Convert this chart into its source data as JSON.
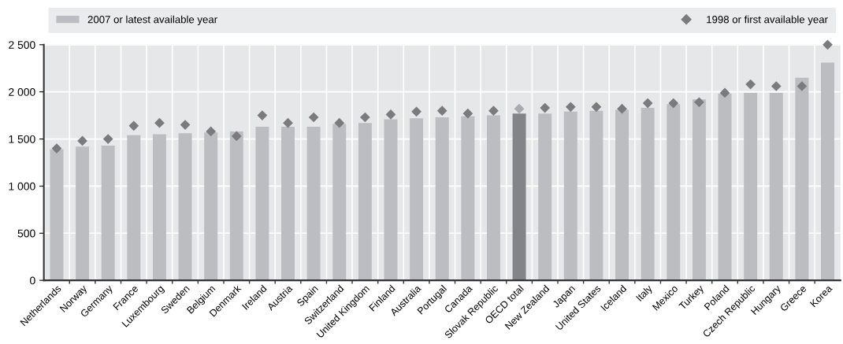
{
  "chart_data": {
    "type": "bar",
    "categories": [
      "Netherlands",
      "Norway",
      "Germany",
      "France",
      "Luxembourg",
      "Sweden",
      "Belgium",
      "Denmark",
      "Ireland",
      "Austria",
      "Spain",
      "Switzerland",
      "United Kingdom",
      "Finland",
      "Australia",
      "Portugal",
      "Canada",
      "Slovak Republic",
      "OECD total",
      "New Zealand",
      "Japan",
      "United States",
      "Iceland",
      "Italy",
      "Mexico",
      "Turkey",
      "Poland",
      "Czech Republic",
      "Hungary",
      "Greece",
      "Korea"
    ],
    "series": [
      {
        "name": "2007 or latest available year",
        "color": "#bcbdc1",
        "colors": [
          "#bcbdc1",
          "#bcbdc1",
          "#bcbdc1",
          "#bcbdc1",
          "#bcbdc1",
          "#bcbdc1",
          "#bcbdc1",
          "#bcbdc1",
          "#bcbdc1",
          "#bcbdc1",
          "#bcbdc1",
          "#bcbdc1",
          "#bcbdc1",
          "#bcbdc1",
          "#bcbdc1",
          "#bcbdc1",
          "#bcbdc1",
          "#bcbdc1",
          "#838487",
          "#bcbdc1",
          "#bcbdc1",
          "#bcbdc1",
          "#bcbdc1",
          "#bcbdc1",
          "#bcbdc1",
          "#bcbdc1",
          "#bcbdc1",
          "#bcbdc1",
          "#bcbdc1",
          "#bcbdc1",
          "#bcbdc1"
        ],
        "values": [
          1390,
          1420,
          1430,
          1540,
          1550,
          1560,
          1570,
          1580,
          1630,
          1630,
          1630,
          1660,
          1670,
          1710,
          1720,
          1730,
          1740,
          1750,
          1770,
          1770,
          1790,
          1800,
          1810,
          1830,
          1870,
          1920,
          1980,
          1990,
          1990,
          2150,
          2310
        ]
      },
      {
        "name": "1998 or first available year",
        "type": "scatter",
        "marker": "diamond",
        "color": "#7b7b7d",
        "colors": [
          "#7b7b7d",
          "#7b7b7d",
          "#7b7b7d",
          "#7b7b7d",
          "#7b7b7d",
          "#7b7b7d",
          "#7b7b7d",
          "#7b7b7d",
          "#7b7b7d",
          "#7b7b7d",
          "#7b7b7d",
          "#7b7b7d",
          "#7b7b7d",
          "#7b7b7d",
          "#7b7b7d",
          "#7b7b7d",
          "#7b7b7d",
          "#7b7b7d",
          "#a9aaad",
          "#7b7b7d",
          "#7b7b7d",
          "#7b7b7d",
          "#7b7b7d",
          "#7b7b7d",
          "#7b7b7d",
          "#7b7b7d",
          "#7b7b7d",
          "#7b7b7d",
          "#7b7b7d",
          "#7b7b7d",
          "#7b7b7d"
        ],
        "values": [
          1400,
          1480,
          1500,
          1640,
          1670,
          1650,
          1580,
          1530,
          1750,
          1670,
          1730,
          1670,
          1730,
          1760,
          1790,
          1800,
          1770,
          1800,
          1820,
          1830,
          1840,
          1840,
          1820,
          1880,
          1880,
          1890,
          1990,
          2080,
          2060,
          2060,
          2500
        ]
      }
    ],
    "ylim": [
      0,
      2500
    ],
    "yticks": [
      0,
      500,
      {
        "value": 1000,
        "label": "1 000"
      },
      {
        "value": 1500,
        "label": "1 500"
      },
      {
        "value": 2000,
        "label": "2 000"
      },
      {
        "value": 2500,
        "label": "2 500"
      }
    ],
    "grid": true,
    "legend": "top"
  }
}
